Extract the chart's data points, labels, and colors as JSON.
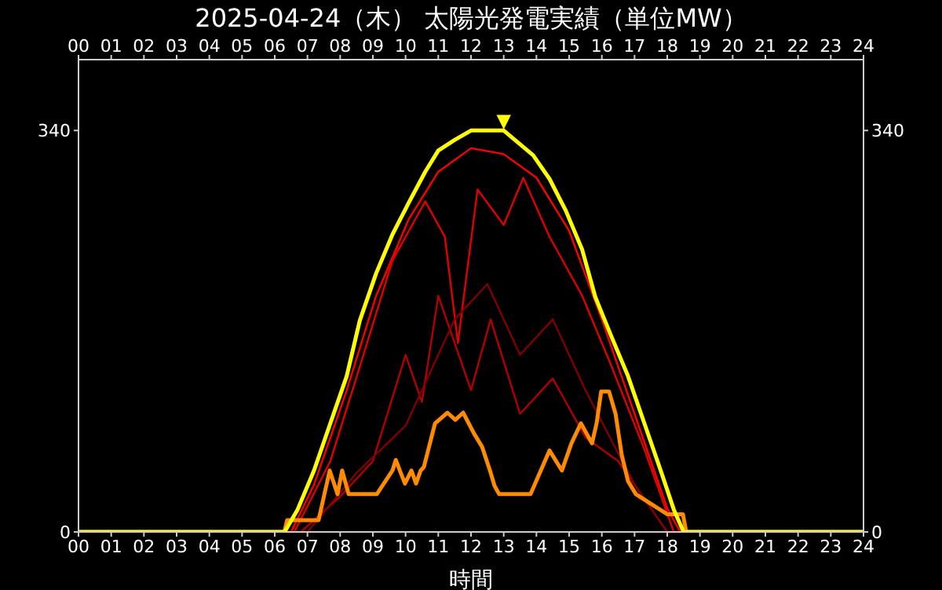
{
  "chart_data": {
    "type": "line",
    "title": "2025-04-24（木） 太陽光発電実績（単位MW）",
    "xlabel": "時間",
    "xlim": [
      0,
      24
    ],
    "xticks": [
      {
        "value": 0,
        "label": "00"
      },
      {
        "value": 1,
        "label": "01"
      },
      {
        "value": 2,
        "label": "02"
      },
      {
        "value": 3,
        "label": "03"
      },
      {
        "value": 4,
        "label": "04"
      },
      {
        "value": 5,
        "label": "05"
      },
      {
        "value": 6,
        "label": "06"
      },
      {
        "value": 7,
        "label": "07"
      },
      {
        "value": 8,
        "label": "08"
      },
      {
        "value": 9,
        "label": "09"
      },
      {
        "value": 10,
        "label": "10"
      },
      {
        "value": 11,
        "label": "11"
      },
      {
        "value": 12,
        "label": "12"
      },
      {
        "value": 13,
        "label": "13"
      },
      {
        "value": 14,
        "label": "14"
      },
      {
        "value": 15,
        "label": "15"
      },
      {
        "value": 16,
        "label": "16"
      },
      {
        "value": 17,
        "label": "17"
      },
      {
        "value": 18,
        "label": "18"
      },
      {
        "value": 19,
        "label": "19"
      },
      {
        "value": 20,
        "label": "20"
      },
      {
        "value": 21,
        "label": "21"
      },
      {
        "value": 22,
        "label": "22"
      },
      {
        "value": 23,
        "label": "23"
      },
      {
        "value": 24,
        "label": "24"
      }
    ],
    "x2lim": [
      0,
      24
    ],
    "x2ticks": [
      {
        "value": 0,
        "label": "00"
      },
      {
        "value": 1,
        "label": "01"
      },
      {
        "value": 2,
        "label": "02"
      },
      {
        "value": 3,
        "label": "03"
      },
      {
        "value": 4,
        "label": "04"
      },
      {
        "value": 5,
        "label": "05"
      },
      {
        "value": 6,
        "label": "06"
      },
      {
        "value": 7,
        "label": "07"
      },
      {
        "value": 8,
        "label": "08"
      },
      {
        "value": 9,
        "label": "09"
      },
      {
        "value": 10,
        "label": "10"
      },
      {
        "value": 11,
        "label": "11"
      },
      {
        "value": 12,
        "label": "12"
      },
      {
        "value": 13,
        "label": "13"
      },
      {
        "value": 14,
        "label": "14"
      },
      {
        "value": 15,
        "label": "15"
      },
      {
        "value": 16,
        "label": "16"
      },
      {
        "value": 17,
        "label": "17"
      },
      {
        "value": 18,
        "label": "18"
      },
      {
        "value": 19,
        "label": "19"
      },
      {
        "value": 20,
        "label": "20"
      },
      {
        "value": 21,
        "label": "21"
      },
      {
        "value": 22,
        "label": "22"
      },
      {
        "value": 23,
        "label": "23"
      },
      {
        "value": 24,
        "label": "24"
      }
    ],
    "ylim": [
      0,
      400
    ],
    "yticks": [
      0,
      340
    ],
    "y2lim": [
      0,
      400
    ],
    "y2ticks": [
      0,
      340
    ],
    "grid": false,
    "legend": false,
    "marker": "none",
    "line_style": "solid",
    "annotations": [
      {
        "text": "▼",
        "x": 13,
        "y": 340
      }
    ],
    "series": [
      {
        "color": "#ff0000",
        "x": [
          0,
          6.5,
          7.2,
          8.2,
          9.1,
          10.1,
          11,
          12,
          13,
          14,
          15,
          16,
          17,
          18,
          18.4,
          24
        ],
        "values": [
          0,
          0,
          40,
          120,
          200,
          265,
          305,
          325,
          320,
          300,
          255,
          180,
          100,
          20,
          0,
          0
        ]
      },
      {
        "color": "#e00000",
        "x": [
          0,
          6.6,
          7.7,
          8.6,
          9.6,
          10.6,
          11.2,
          11.6,
          12.2,
          13,
          13.6,
          14.4,
          15.4,
          16.3,
          17.3,
          18.2,
          24
        ],
        "values": [
          0,
          0,
          60,
          140,
          230,
          280,
          250,
          160,
          290,
          260,
          300,
          250,
          200,
          140,
          70,
          0,
          0
        ]
      },
      {
        "color": "#b00000",
        "x": [
          0,
          6.8,
          8,
          9,
          10,
          10.5,
          11,
          12,
          12.6,
          13.5,
          14.5,
          15.5,
          16.5,
          17.5,
          18,
          24
        ],
        "values": [
          0,
          0,
          30,
          60,
          150,
          110,
          200,
          120,
          180,
          100,
          130,
          80,
          60,
          20,
          0,
          0
        ]
      },
      {
        "color": "#800000",
        "x": [
          0,
          7,
          8.5,
          10,
          11.5,
          12.5,
          13.5,
          14.5,
          15.5,
          17,
          18,
          24
        ],
        "values": [
          0,
          0,
          50,
          90,
          180,
          210,
          150,
          180,
          120,
          40,
          0,
          0
        ]
      },
      {
        "color": "#ff8c00",
        "x": [
          0,
          6.29,
          6.38,
          7.34,
          7.68,
          7.92,
          8.06,
          8.26,
          9.12,
          9.6,
          9.7,
          9.98,
          10.18,
          10.32,
          10.46,
          10.56,
          10.9,
          11.28,
          11.52,
          11.76,
          12.1,
          12.34,
          12.58,
          12.72,
          12.86,
          13.82,
          14.4,
          14.78,
          15.07,
          15.36,
          15.7,
          15.84,
          15.98,
          16.22,
          16.42,
          16.61,
          16.8,
          17.04,
          17.66,
          18.0,
          18.48,
          18.58,
          24
        ],
        "values": [
          0,
          0,
          10,
          10,
          52,
          32,
          52,
          32,
          32,
          52,
          61,
          41,
          52,
          41,
          52,
          55,
          92,
          101,
          95,
          101,
          83,
          72,
          52,
          39,
          32,
          32,
          69,
          52,
          75,
          92,
          75,
          92,
          119,
          119,
          100,
          65,
          43,
          32,
          21,
          15,
          15,
          0,
          0
        ]
      },
      {
        "color": "#ffff00",
        "x": [
          0,
          6.3,
          6.7,
          7.2,
          7.7,
          8.2,
          8.6,
          9.1,
          9.6,
          10.1,
          10.6,
          11.0,
          11.5,
          12.0,
          13.0,
          13.9,
          14.4,
          14.9,
          15.4,
          15.8,
          16.3,
          16.8,
          17.3,
          17.8,
          18.2,
          18.5,
          24
        ],
        "values": [
          0,
          0,
          19,
          52,
          92,
          132,
          179,
          219,
          252,
          279,
          305,
          323,
          332,
          340,
          340,
          319,
          299,
          272,
          239,
          199,
          165,
          132,
          92,
          52,
          19,
          0,
          0
        ]
      }
    ]
  }
}
